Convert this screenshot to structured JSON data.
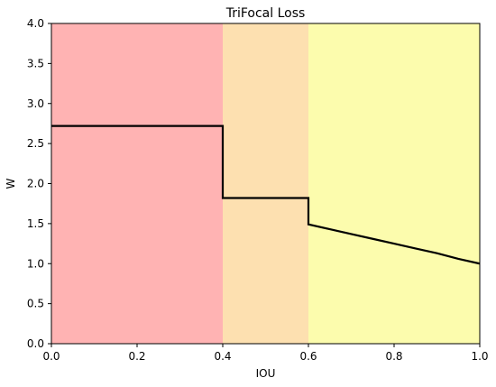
{
  "chart_data": {
    "type": "line",
    "title": "TriFocal Loss",
    "xlabel": "IOU",
    "ylabel": "W",
    "xlim": [
      0.0,
      1.0
    ],
    "ylim": [
      0.0,
      4.0
    ],
    "x_ticks": [
      "0.0",
      "0.2",
      "0.4",
      "0.6",
      "0.8",
      "1.0"
    ],
    "y_ticks": [
      "0.0",
      "0.5",
      "1.0",
      "1.5",
      "2.0",
      "2.5",
      "3.0",
      "3.5",
      "4.0"
    ],
    "grid": false,
    "regions": [
      {
        "x_start": 0.0,
        "x_end": 0.4,
        "color": "#ffb3b3"
      },
      {
        "x_start": 0.4,
        "x_end": 0.6,
        "color": "#fde0b0"
      },
      {
        "x_start": 0.6,
        "x_end": 1.0,
        "color": "#fcfcad"
      }
    ],
    "series": [
      {
        "color": "#000000",
        "x": [
          0.0,
          0.4,
          0.4,
          0.6,
          0.6,
          0.65,
          0.7,
          0.75,
          0.8,
          0.85,
          0.9,
          0.95,
          1.0
        ],
        "y": [
          2.72,
          2.72,
          1.82,
          1.82,
          1.49,
          1.43,
          1.37,
          1.31,
          1.25,
          1.19,
          1.13,
          1.06,
          1.0
        ]
      }
    ]
  }
}
